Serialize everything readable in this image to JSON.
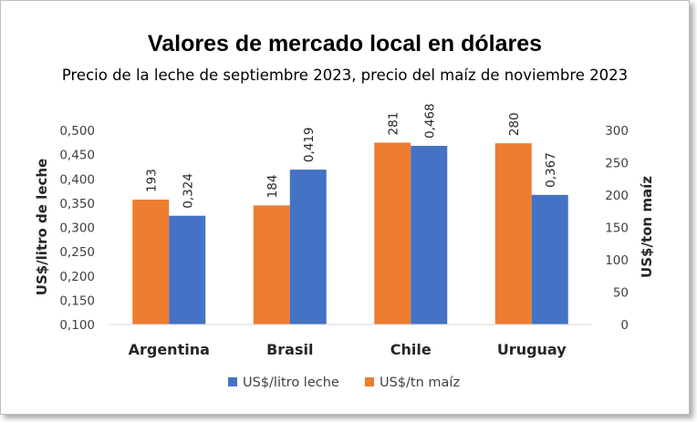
{
  "chart_data": {
    "type": "bar",
    "title": "Valores de mercado local en dólares",
    "subtitle": "Precio de la leche de septiembre 2023, precio del maíz de noviembre 2023",
    "categories": [
      "Argentina",
      "Brasil",
      "Chile",
      "Uruguay"
    ],
    "series": [
      {
        "name": "US$/litro leche",
        "axis": "left",
        "color": "#4472c4",
        "values": [
          0.324,
          0.419,
          0.468,
          0.367
        ],
        "labels": [
          "0,324",
          "0,419",
          "0,468",
          "0,367"
        ]
      },
      {
        "name": "US$/tn maíz",
        "axis": "right",
        "color": "#ed7d31",
        "values": [
          193,
          184,
          281,
          280
        ],
        "labels": [
          "193",
          "184",
          "281",
          "280"
        ]
      }
    ],
    "y_left": {
      "label": "US$/litro de leche",
      "lim": [
        0.1,
        0.5
      ],
      "ticks": [
        "0,100",
        "0,150",
        "0,200",
        "0,250",
        "0,300",
        "0,350",
        "0,400",
        "0,450",
        "0,500"
      ]
    },
    "y_right": {
      "label": "US$/ton maíz",
      "lim": [
        0,
        300
      ],
      "ticks": [
        "0",
        "50",
        "100",
        "150",
        "200",
        "250",
        "300"
      ]
    },
    "legend": {
      "position": "bottom",
      "order": [
        "US$/litro leche",
        "US$/tn maíz"
      ]
    },
    "grid": false
  }
}
